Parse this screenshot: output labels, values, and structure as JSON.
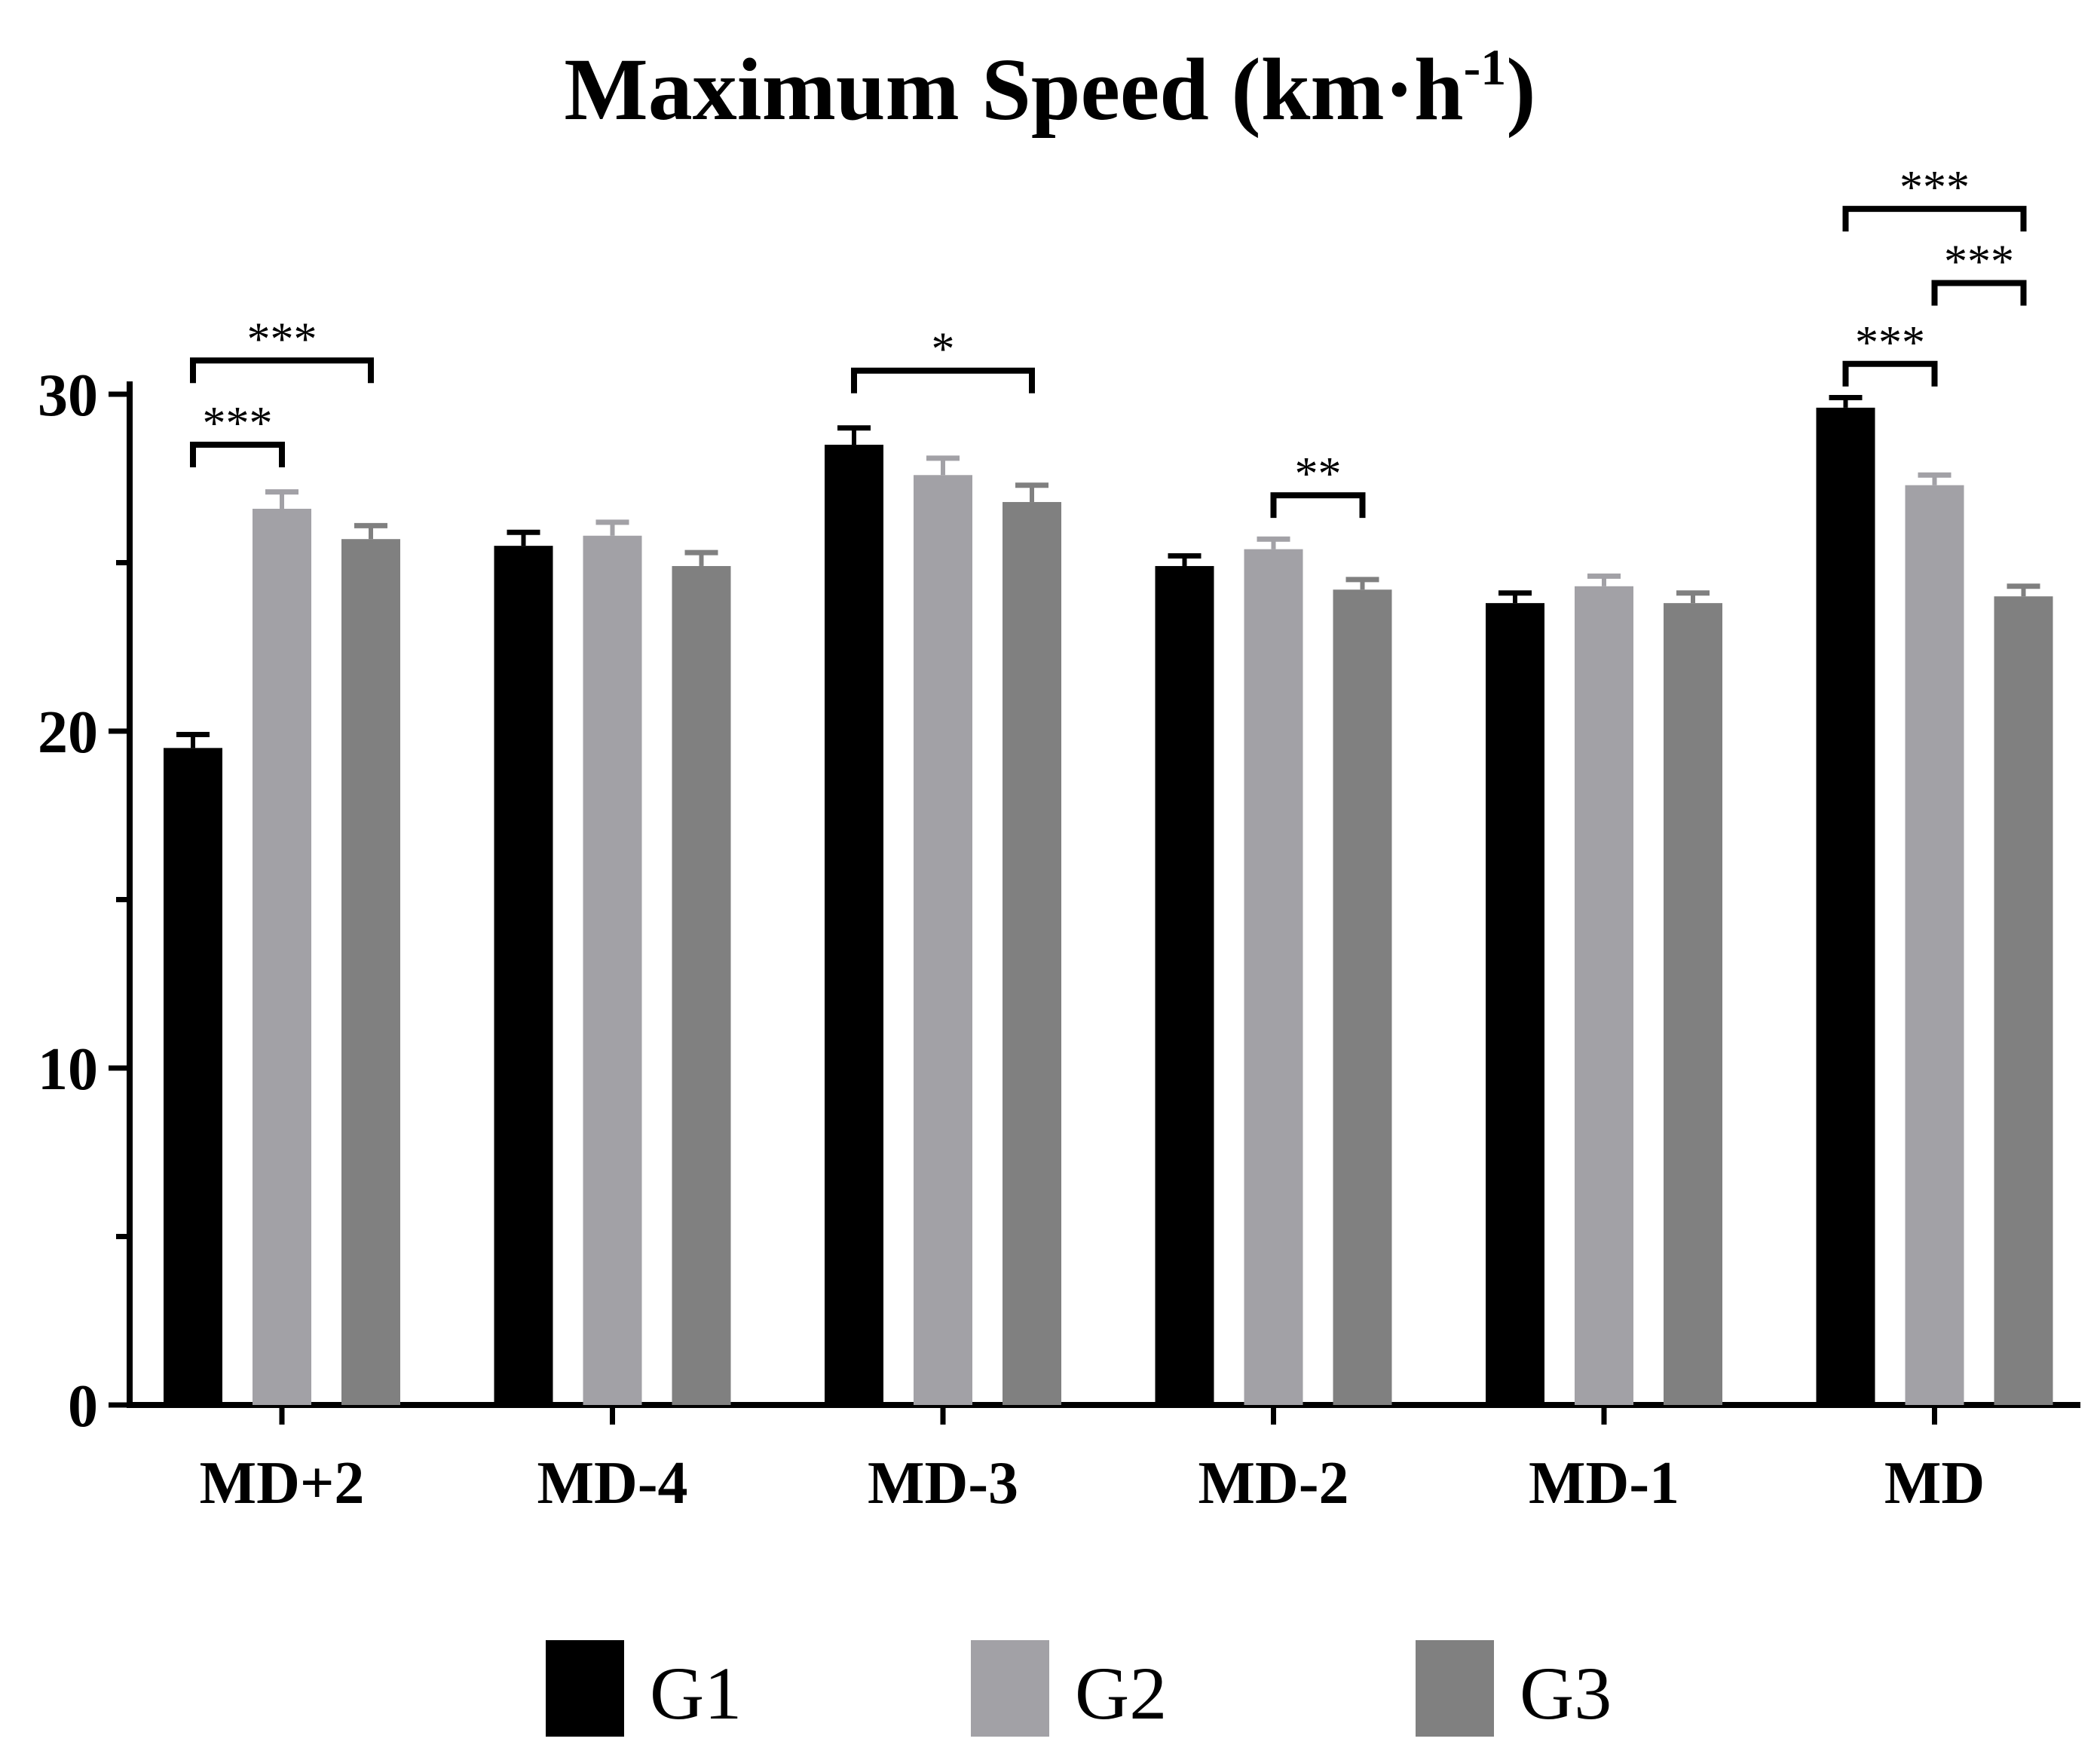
{
  "chart_data": {
    "type": "bar",
    "title": "Maximum Speed (km·h",
    "title_superscript": "-1",
    "title_closing": ")",
    "xlabel": "",
    "ylabel": "",
    "ylim": [
      0,
      30
    ],
    "yticks": [
      0,
      10,
      20,
      30
    ],
    "y_minor_ticks": [
      5,
      15,
      25
    ],
    "categories": [
      "MD+2",
      "MD-4",
      "MD-3",
      "MD-2",
      "MD-1",
      "MD"
    ],
    "series": [
      {
        "name": "G1",
        "color": "#000000",
        "values": [
          19.5,
          25.5,
          28.5,
          24.9,
          23.8,
          29.6
        ],
        "errors": [
          0.4,
          0.4,
          0.5,
          0.3,
          0.3,
          0.3
        ]
      },
      {
        "name": "G2",
        "color": "#a2a1a6",
        "values": [
          26.6,
          25.8,
          27.6,
          25.4,
          24.3,
          27.3
        ],
        "errors": [
          0.5,
          0.4,
          0.5,
          0.3,
          0.3,
          0.3
        ]
      },
      {
        "name": "G3",
        "color": "#808080",
        "values": [
          25.7,
          24.9,
          26.8,
          24.2,
          23.8,
          24.0
        ],
        "errors": [
          0.4,
          0.4,
          0.5,
          0.3,
          0.3,
          0.3
        ]
      }
    ],
    "significance": [
      {
        "category": "MD+2",
        "from": "G1",
        "to": "G2",
        "label": "***",
        "y": 28.5
      },
      {
        "category": "MD+2",
        "from": "G1",
        "to": "G3",
        "label": "***",
        "y": 31.0
      },
      {
        "category": "MD-3",
        "from": "G1",
        "to": "G3",
        "label": "*",
        "y": 30.7
      },
      {
        "category": "MD-2",
        "from": "G2",
        "to": "G3",
        "label": "**",
        "y": 27.0
      },
      {
        "category": "MD",
        "from": "G1",
        "to": "G2",
        "label": "***",
        "y": 30.9
      },
      {
        "category": "MD",
        "from": "G2",
        "to": "G3",
        "label": "***",
        "y": 33.3
      },
      {
        "category": "MD",
        "from": "G1",
        "to": "G3",
        "label": "***",
        "y": 35.5
      }
    ],
    "legend": {
      "position": "bottom",
      "entries": [
        "G1",
        "G2",
        "G3"
      ]
    },
    "grid": false
  }
}
